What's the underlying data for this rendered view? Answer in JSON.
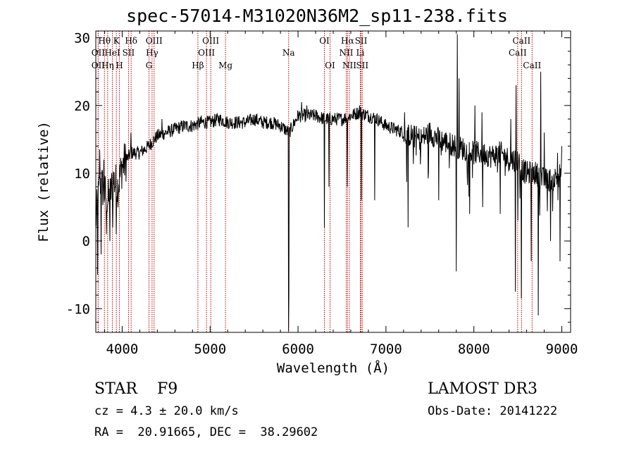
{
  "chart_data": {
    "type": "line",
    "title": "spec-57014-M31020N36M2_sp11-238.fits",
    "xlabel": "Wavelength (Å)",
    "ylabel": "Flux (relative)",
    "xlim": [
      3700,
      9100
    ],
    "ylim": [
      -13.5,
      31
    ],
    "xticks": [
      4000,
      5000,
      6000,
      7000,
      8000,
      9000
    ],
    "yticks": [
      -10,
      0,
      10,
      20,
      30
    ],
    "spectrum_anchors": [
      [
        3700,
        3
      ],
      [
        3750,
        9
      ],
      [
        3800,
        7
      ],
      [
        3850,
        6
      ],
      [
        3900,
        9
      ],
      [
        3950,
        8
      ],
      [
        4000,
        11
      ],
      [
        4050,
        12
      ],
      [
        4100,
        13
      ],
      [
        4200,
        13
      ],
      [
        4300,
        14
      ],
      [
        4400,
        15.5
      ],
      [
        4500,
        16
      ],
      [
        4600,
        16.5
      ],
      [
        4700,
        17
      ],
      [
        4800,
        17
      ],
      [
        4900,
        17.5
      ],
      [
        5000,
        17.5
      ],
      [
        5100,
        18
      ],
      [
        5200,
        17.5
      ],
      [
        5300,
        17.5
      ],
      [
        5400,
        17.5
      ],
      [
        5500,
        18
      ],
      [
        5600,
        17.5
      ],
      [
        5700,
        17.5
      ],
      [
        5800,
        17
      ],
      [
        5850,
        16.5
      ],
      [
        5900,
        16
      ],
      [
        6000,
        18.5
      ],
      [
        6100,
        18.5
      ],
      [
        6200,
        18.5
      ],
      [
        6300,
        18
      ],
      [
        6400,
        18
      ],
      [
        6500,
        18
      ],
      [
        6600,
        18.5
      ],
      [
        6700,
        19
      ],
      [
        6800,
        18.5
      ],
      [
        6900,
        18
      ],
      [
        7000,
        17
      ],
      [
        7100,
        16.5
      ],
      [
        7200,
        16
      ],
      [
        7300,
        15.5
      ],
      [
        7400,
        15
      ],
      [
        7500,
        16
      ],
      [
        7600,
        15
      ],
      [
        7700,
        14.5
      ],
      [
        7800,
        14
      ],
      [
        7900,
        13.5
      ],
      [
        8000,
        13
      ],
      [
        8100,
        13
      ],
      [
        8200,
        12.5
      ],
      [
        8300,
        13
      ],
      [
        8400,
        12
      ],
      [
        8500,
        12
      ],
      [
        8550,
        10.5
      ],
      [
        8600,
        10
      ],
      [
        8700,
        10
      ],
      [
        8800,
        9
      ],
      [
        8900,
        9
      ],
      [
        9000,
        10
      ]
    ],
    "absorption_dips": [
      [
        3720,
        -5
      ],
      [
        3760,
        -2
      ],
      [
        3820,
        1
      ],
      [
        3860,
        0
      ],
      [
        3890,
        2
      ],
      [
        3930,
        1
      ],
      [
        5893,
        -13.3
      ],
      [
        5895,
        -8
      ],
      [
        6300,
        2
      ],
      [
        6350,
        8
      ],
      [
        6560,
        8
      ],
      [
        6720,
        6
      ],
      [
        6870,
        6
      ],
      [
        7250,
        2
      ],
      [
        7600,
        6
      ],
      [
        7800,
        -4.5
      ],
      [
        7950,
        4
      ],
      [
        8100,
        5
      ],
      [
        8300,
        4
      ],
      [
        8470,
        -7.5
      ],
      [
        8500,
        3
      ],
      [
        8540,
        -8.5
      ],
      [
        8650,
        -3
      ],
      [
        8730,
        -11
      ],
      [
        8870,
        0
      ],
      [
        8980,
        -3
      ]
    ],
    "emission_spikes": [
      [
        3745,
        13.5
      ],
      [
        3790,
        12
      ],
      [
        4100,
        16
      ],
      [
        4450,
        18
      ],
      [
        4900,
        18.5
      ],
      [
        6040,
        20.5
      ],
      [
        6100,
        20
      ],
      [
        6700,
        20
      ],
      [
        7210,
        19
      ],
      [
        7810,
        30.5
      ],
      [
        7830,
        24
      ],
      [
        8010,
        20
      ],
      [
        8090,
        19
      ],
      [
        8420,
        18
      ],
      [
        8480,
        23
      ],
      [
        8760,
        25
      ],
      [
        8800,
        16
      ],
      [
        8950,
        13
      ],
      [
        9000,
        14
      ]
    ],
    "line_markers": [
      {
        "label": "Hθ",
        "x": 3798,
        "row": 0
      },
      {
        "label": "OII",
        "x": 3727,
        "row": 1
      },
      {
        "label": "OII",
        "x": 3727,
        "row": 2
      },
      {
        "label": "K",
        "x": 3934,
        "row": 0
      },
      {
        "label": "HeI",
        "x": 3889,
        "row": 1
      },
      {
        "label": "Hη",
        "x": 3835,
        "row": 2
      },
      {
        "label": "Hδ",
        "x": 4102,
        "row": 0
      },
      {
        "label": "SII",
        "x": 4072,
        "row": 1
      },
      {
        "label": "H",
        "x": 3968,
        "row": 2
      },
      {
        "label": "OIII",
        "x": 4363,
        "row": 0
      },
      {
        "label": "Hγ",
        "x": 4340,
        "row": 1
      },
      {
        "label": "G",
        "x": 4305,
        "row": 2
      },
      {
        "label": "OIII",
        "x": 5007,
        "row": 0
      },
      {
        "label": "OIII",
        "x": 4959,
        "row": 1
      },
      {
        "label": "Hβ",
        "x": 4861,
        "row": 2
      },
      {
        "label": "Mg",
        "x": 5175,
        "row": 2
      },
      {
        "label": "Na",
        "x": 5893,
        "row": 1
      },
      {
        "label": "OI",
        "x": 6300,
        "row": 0
      },
      {
        "label": "OI",
        "x": 6364,
        "row": 2
      },
      {
        "label": "Hα",
        "x": 6563,
        "row": 0
      },
      {
        "label": "SII",
        "x": 6717,
        "row": 0
      },
      {
        "label": "NII",
        "x": 6548,
        "row": 1
      },
      {
        "label": "Li",
        "x": 6708,
        "row": 1
      },
      {
        "label": "NII",
        "x": 6584,
        "row": 2
      },
      {
        "label": "SII",
        "x": 6731,
        "row": 2
      },
      {
        "label": "CaII",
        "x": 8542,
        "row": 0
      },
      {
        "label": "CaII",
        "x": 8498,
        "row": 1
      },
      {
        "label": "CaII",
        "x": 8662,
        "row": 2
      }
    ],
    "marker_color": "#c00000",
    "grid": false
  },
  "info": {
    "object_type": "STAR",
    "subclass": "F9",
    "survey": "LAMOST DR3",
    "cz": "cz = 4.3 ± 20.0 km/s",
    "obs_date": "Obs-Date: 20141222",
    "radec": "RA =  20.91665, DEC =  38.29602"
  }
}
